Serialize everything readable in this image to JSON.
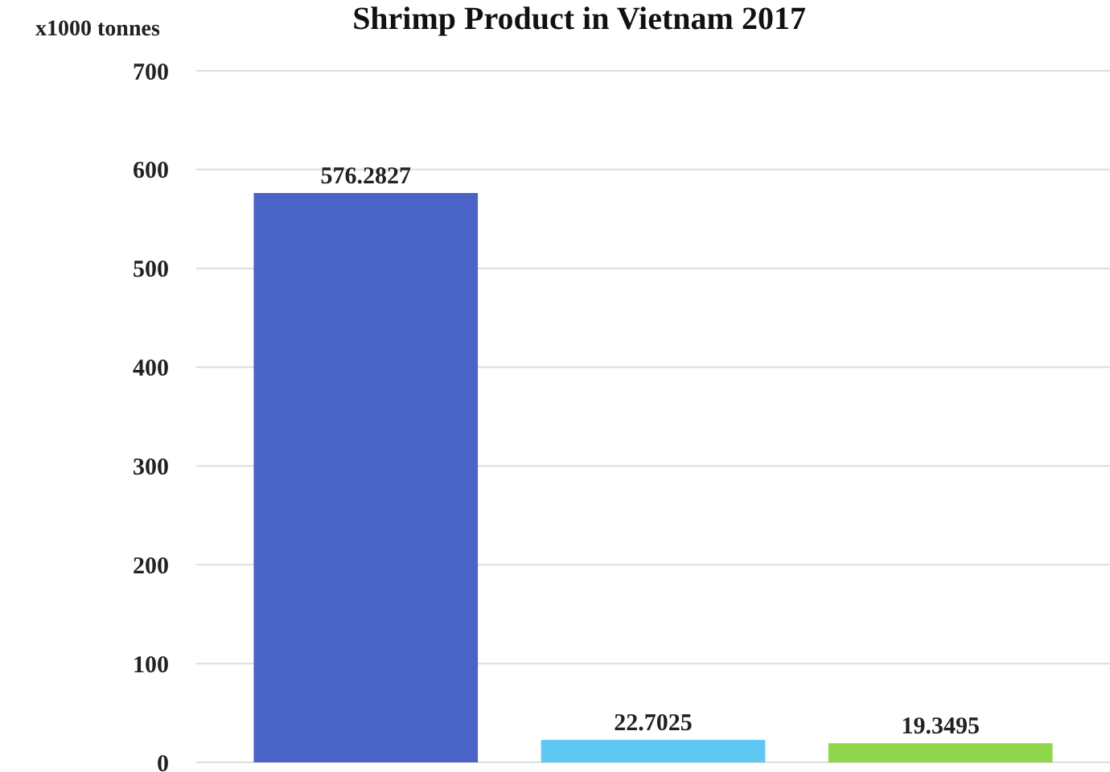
{
  "chart_data": {
    "type": "bar",
    "title": "Shrimp Product in Vietnam 2017",
    "ylabel": "x1000 tonnes",
    "categories": [
      null,
      null,
      null
    ],
    "values": [
      576.2827,
      22.7025,
      19.3495
    ],
    "colors": [
      "#4a63c6",
      "#5ec8f2",
      "#8ed64a"
    ],
    "ylim": [
      0,
      700
    ],
    "yticks": [
      0,
      100,
      200,
      300,
      400,
      500,
      600,
      700
    ],
    "grid": "y",
    "data_labels": true
  }
}
